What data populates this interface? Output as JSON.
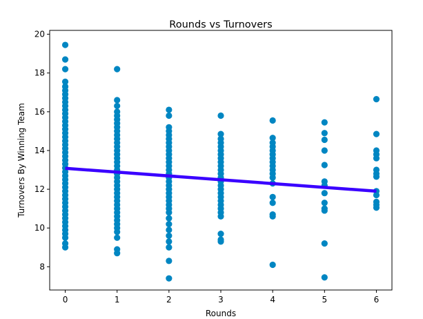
{
  "chart_data": {
    "type": "scatter",
    "title": "Rounds vs Turnovers",
    "xlabel": "Rounds",
    "ylabel": "Turnovers By Winning Team",
    "xlim": [
      -0.3,
      6.3
    ],
    "ylim": [
      6.8,
      20.2
    ],
    "xticks": [
      0,
      1,
      2,
      3,
      4,
      5,
      6
    ],
    "yticks": [
      8,
      10,
      12,
      14,
      16,
      18,
      20
    ],
    "grid": false,
    "point_color": "#0086c2",
    "line_color": "#3a00ff",
    "series": [
      {
        "kind": "points",
        "points": [
          [
            0,
            19.45
          ],
          [
            0,
            18.7
          ],
          [
            0,
            18.2
          ],
          [
            0,
            17.55
          ],
          [
            0,
            17.3
          ],
          [
            0,
            17.1
          ],
          [
            0,
            16.9
          ],
          [
            0,
            16.7
          ],
          [
            0,
            16.5
          ],
          [
            0,
            16.3
          ],
          [
            0,
            16.1
          ],
          [
            0,
            15.9
          ],
          [
            0,
            15.7
          ],
          [
            0,
            15.5
          ],
          [
            0,
            15.3
          ],
          [
            0,
            15.1
          ],
          [
            0,
            14.9
          ],
          [
            0,
            14.7
          ],
          [
            0,
            14.5
          ],
          [
            0,
            14.3
          ],
          [
            0,
            14.1
          ],
          [
            0,
            13.9
          ],
          [
            0,
            13.7
          ],
          [
            0,
            13.5
          ],
          [
            0,
            13.3
          ],
          [
            0,
            13.1
          ],
          [
            0,
            12.9
          ],
          [
            0,
            12.7
          ],
          [
            0,
            12.5
          ],
          [
            0,
            12.3
          ],
          [
            0,
            12.1
          ],
          [
            0,
            11.9
          ],
          [
            0,
            11.7
          ],
          [
            0,
            11.5
          ],
          [
            0,
            11.3
          ],
          [
            0,
            11.1
          ],
          [
            0,
            10.9
          ],
          [
            0,
            10.7
          ],
          [
            0,
            10.5
          ],
          [
            0,
            10.3
          ],
          [
            0,
            10.1
          ],
          [
            0,
            9.9
          ],
          [
            0,
            9.7
          ],
          [
            0,
            9.5
          ],
          [
            0,
            9.2
          ],
          [
            0,
            9.0
          ],
          [
            1,
            18.2
          ],
          [
            1,
            16.6
          ],
          [
            1,
            16.3
          ],
          [
            1,
            16.0
          ],
          [
            1,
            15.8
          ],
          [
            1,
            15.6
          ],
          [
            1,
            15.4
          ],
          [
            1,
            15.2
          ],
          [
            1,
            15.0
          ],
          [
            1,
            14.8
          ],
          [
            1,
            14.6
          ],
          [
            1,
            14.4
          ],
          [
            1,
            14.2
          ],
          [
            1,
            14.0
          ],
          [
            1,
            13.8
          ],
          [
            1,
            13.6
          ],
          [
            1,
            13.4
          ],
          [
            1,
            13.2
          ],
          [
            1,
            13.0
          ],
          [
            1,
            12.8
          ],
          [
            1,
            12.6
          ],
          [
            1,
            12.4
          ],
          [
            1,
            12.2
          ],
          [
            1,
            12.0
          ],
          [
            1,
            11.8
          ],
          [
            1,
            11.6
          ],
          [
            1,
            11.4
          ],
          [
            1,
            11.2
          ],
          [
            1,
            11.0
          ],
          [
            1,
            10.8
          ],
          [
            1,
            10.6
          ],
          [
            1,
            10.4
          ],
          [
            1,
            10.2
          ],
          [
            1,
            10.0
          ],
          [
            1,
            9.8
          ],
          [
            1,
            9.5
          ],
          [
            1,
            8.9
          ],
          [
            1,
            8.7
          ],
          [
            2,
            16.1
          ],
          [
            2,
            15.8
          ],
          [
            2,
            15.2
          ],
          [
            2,
            15.0
          ],
          [
            2,
            14.8
          ],
          [
            2,
            14.6
          ],
          [
            2,
            14.4
          ],
          [
            2,
            14.2
          ],
          [
            2,
            14.0
          ],
          [
            2,
            13.8
          ],
          [
            2,
            13.6
          ],
          [
            2,
            13.4
          ],
          [
            2,
            13.2
          ],
          [
            2,
            13.0
          ],
          [
            2,
            12.8
          ],
          [
            2,
            12.6
          ],
          [
            2,
            12.4
          ],
          [
            2,
            12.2
          ],
          [
            2,
            12.0
          ],
          [
            2,
            11.8
          ],
          [
            2,
            11.6
          ],
          [
            2,
            11.4
          ],
          [
            2,
            11.2
          ],
          [
            2,
            11.0
          ],
          [
            2,
            10.8
          ],
          [
            2,
            10.5
          ],
          [
            2,
            10.2
          ],
          [
            2,
            9.9
          ],
          [
            2,
            9.6
          ],
          [
            2,
            9.3
          ],
          [
            2,
            9.0
          ],
          [
            2,
            8.3
          ],
          [
            2,
            7.4
          ],
          [
            3,
            15.8
          ],
          [
            3,
            14.85
          ],
          [
            3,
            14.6
          ],
          [
            3,
            14.4
          ],
          [
            3,
            14.2
          ],
          [
            3,
            14.0
          ],
          [
            3,
            13.8
          ],
          [
            3,
            13.6
          ],
          [
            3,
            13.4
          ],
          [
            3,
            13.2
          ],
          [
            3,
            13.0
          ],
          [
            3,
            12.8
          ],
          [
            3,
            12.6
          ],
          [
            3,
            12.4
          ],
          [
            3,
            12.2
          ],
          [
            3,
            12.0
          ],
          [
            3,
            11.8
          ],
          [
            3,
            11.6
          ],
          [
            3,
            11.4
          ],
          [
            3,
            11.2
          ],
          [
            3,
            11.0
          ],
          [
            3,
            10.8
          ],
          [
            3,
            10.6
          ],
          [
            3,
            9.7
          ],
          [
            3,
            9.4
          ],
          [
            3,
            9.3
          ],
          [
            4,
            15.55
          ],
          [
            4,
            14.65
          ],
          [
            4,
            14.4
          ],
          [
            4,
            14.2
          ],
          [
            4,
            14.0
          ],
          [
            4,
            13.8
          ],
          [
            4,
            13.6
          ],
          [
            4,
            13.4
          ],
          [
            4,
            13.2
          ],
          [
            4,
            13.0
          ],
          [
            4,
            12.8
          ],
          [
            4,
            12.6
          ],
          [
            4,
            12.3
          ],
          [
            4,
            11.6
          ],
          [
            4,
            11.3
          ],
          [
            4,
            10.7
          ],
          [
            4,
            10.6
          ],
          [
            4,
            8.1
          ],
          [
            5,
            15.45
          ],
          [
            5,
            14.9
          ],
          [
            5,
            14.55
          ],
          [
            5,
            14.0
          ],
          [
            5,
            13.25
          ],
          [
            5,
            12.4
          ],
          [
            5,
            12.2
          ],
          [
            5,
            11.8
          ],
          [
            5,
            11.3
          ],
          [
            5,
            11.0
          ],
          [
            5,
            10.9
          ],
          [
            5,
            9.2
          ],
          [
            5,
            7.45
          ],
          [
            6,
            16.65
          ],
          [
            6,
            14.85
          ],
          [
            6,
            14.0
          ],
          [
            6,
            13.8
          ],
          [
            6,
            13.6
          ],
          [
            6,
            13.0
          ],
          [
            6,
            12.8
          ],
          [
            6,
            12.65
          ],
          [
            6,
            11.9
          ],
          [
            6,
            11.7
          ],
          [
            6,
            11.35
          ],
          [
            6,
            11.2
          ],
          [
            6,
            11.05
          ]
        ]
      },
      {
        "kind": "fit-line",
        "points": [
          [
            0,
            13.08
          ],
          [
            6,
            11.9
          ]
        ]
      }
    ]
  }
}
